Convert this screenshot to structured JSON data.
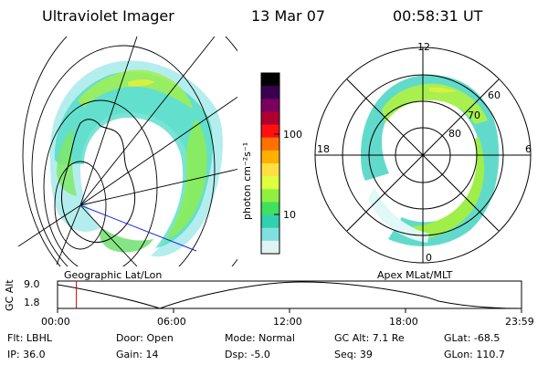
{
  "header": {
    "instrument": "Ultraviolet Imager",
    "date": "13 Mar 07",
    "time": "00:58:31 UT"
  },
  "left_panel": {
    "caption": "Geographic Lat/Lon"
  },
  "right_panel": {
    "caption": "Apex MLat/MLT",
    "mlt_labels": [
      "12",
      "18",
      "6",
      "0"
    ],
    "lat_labels": [
      "60",
      "70",
      "80"
    ]
  },
  "colorbar": {
    "label": "photon cm⁻²s⁻¹",
    "ticks": [
      "100",
      "10"
    ],
    "colors": [
      "#000000",
      "#3a0050",
      "#7a0060",
      "#b00030",
      "#ff1010",
      "#ff7000",
      "#ffb000",
      "#ffe040",
      "#e0ff40",
      "#90f040",
      "#40e060",
      "#30d0b0",
      "#80e0e0",
      "#e0f4f4"
    ]
  },
  "altitude_plot": {
    "ylabel": "GC Alt",
    "yticks": [
      "9.0",
      "1.8"
    ],
    "xticks": [
      "00:00",
      "06:00",
      "12:00",
      "18:00",
      "23:59"
    ],
    "marker_time_hours": 0.975,
    "marker_color": "#cc0000"
  },
  "info": {
    "flt": "Flt: LBHL",
    "ip": "IP: 36.0",
    "door": "Door: Open",
    "gain": "Gain: 14",
    "mode": "Mode: Normal",
    "dsp": "Dsp:    -5.0",
    "gcalt": "GC Alt: 7.1 Re",
    "seq": "Seq: 39",
    "glat": "GLat: -68.5",
    "glon": "GLon: 110.7"
  }
}
